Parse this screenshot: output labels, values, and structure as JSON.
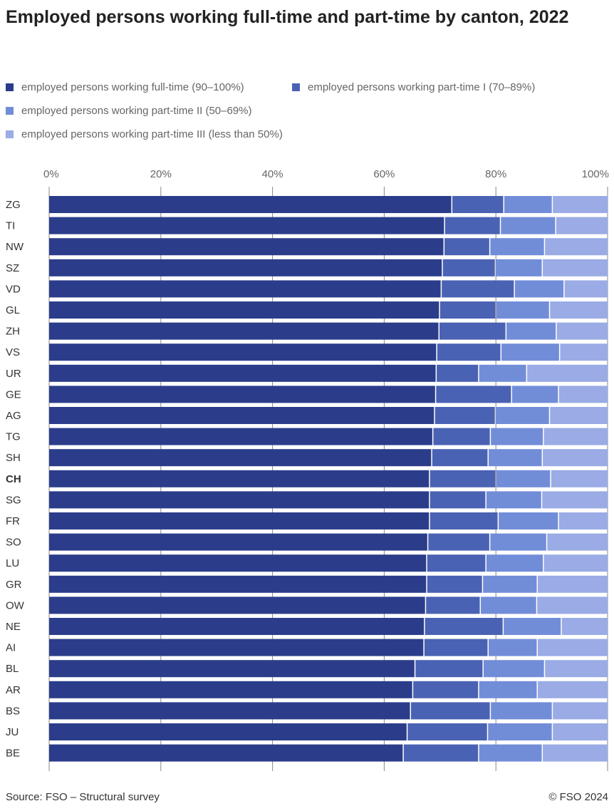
{
  "chart_data": {
    "type": "bar",
    "orientation": "horizontal",
    "stacked": true,
    "title": "Employed persons working full-time and part-time by canton, 2022",
    "xlim": [
      0,
      100
    ],
    "x_ticks": [
      "0%",
      "20%",
      "40%",
      "60%",
      "80%",
      "100%"
    ],
    "grid": true,
    "legend_position": "top",
    "categories": [
      "ZG",
      "TI",
      "NW",
      "SZ",
      "VD",
      "GL",
      "ZH",
      "VS",
      "UR",
      "GE",
      "AG",
      "TG",
      "SH",
      "CH",
      "SG",
      "FR",
      "SO",
      "LU",
      "GR",
      "OW",
      "NE",
      "AI",
      "BL",
      "AR",
      "BS",
      "JU",
      "BE"
    ],
    "highlight_category": "CH",
    "series": [
      {
        "name": "employed persons working full-time (90–100%)",
        "color": "#2b3d8a",
        "values": [
          72.2,
          70.9,
          70.8,
          70.5,
          70.3,
          70.0,
          69.9,
          69.5,
          69.4,
          69.3,
          69.1,
          68.8,
          68.6,
          68.2,
          68.2,
          68.2,
          67.9,
          67.7,
          67.7,
          67.5,
          67.3,
          67.2,
          65.6,
          65.2,
          64.8,
          64.2,
          63.5
        ]
      },
      {
        "name": "employed persons working part-time I (70–89%)",
        "color": "#4a62b3",
        "values": [
          9.3,
          10.0,
          8.2,
          9.5,
          13.1,
          10.1,
          12.0,
          11.5,
          7.6,
          13.6,
          10.9,
          10.3,
          10.1,
          11.9,
          10.1,
          12.3,
          11.1,
          10.6,
          10.0,
          9.8,
          14.1,
          11.5,
          12.2,
          11.8,
          14.3,
          14.4,
          13.5
        ]
      },
      {
        "name": "employed persons working part-time II (50–69%)",
        "color": "#728dd8",
        "values": [
          8.7,
          9.9,
          9.8,
          8.4,
          8.9,
          9.6,
          9.0,
          10.5,
          8.6,
          8.4,
          9.7,
          9.5,
          9.7,
          9.8,
          10.0,
          10.8,
          10.2,
          10.3,
          9.8,
          10.1,
          10.4,
          8.8,
          11.0,
          10.5,
          11.1,
          11.6,
          11.4
        ]
      },
      {
        "name": "employed persons working part-time III (less than 50%)",
        "color": "#9aabe5",
        "values": [
          9.8,
          9.2,
          11.2,
          11.6,
          7.7,
          10.3,
          9.1,
          8.5,
          14.4,
          8.7,
          10.3,
          11.4,
          11.6,
          10.1,
          11.7,
          8.7,
          10.8,
          11.4,
          12.5,
          12.6,
          8.2,
          12.5,
          11.2,
          12.5,
          9.8,
          9.8,
          11.6
        ]
      }
    ]
  },
  "footer": {
    "source": "Source: FSO – Structural survey",
    "copyright": "© FSO 2024"
  }
}
